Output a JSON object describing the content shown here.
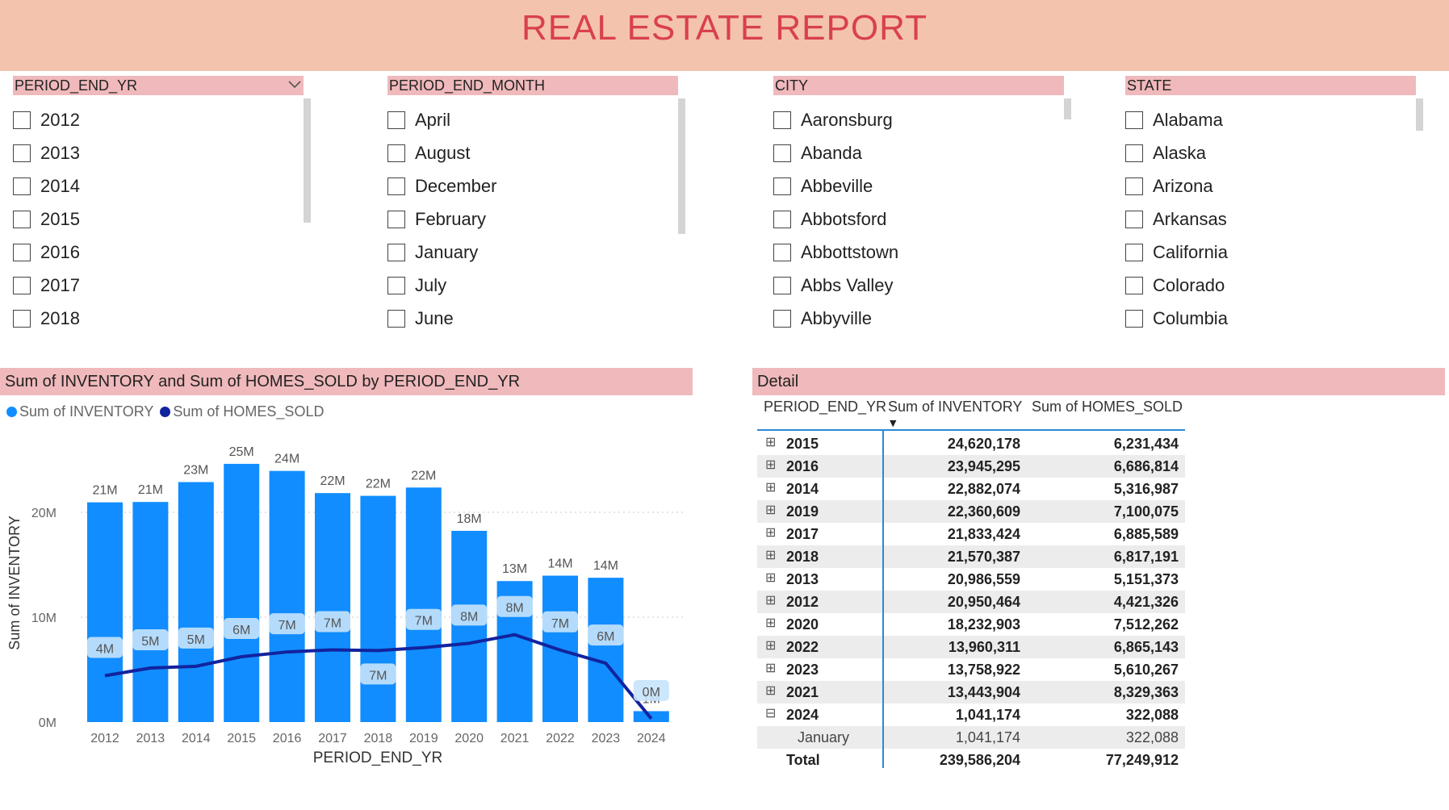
{
  "header": {
    "title": "REAL ESTATE REPORT"
  },
  "slicers": {
    "year": {
      "title": "PERIOD_END_YR",
      "items": [
        "2012",
        "2013",
        "2014",
        "2015",
        "2016",
        "2017",
        "2018"
      ]
    },
    "month": {
      "title": "PERIOD_END_MONTH",
      "items": [
        "April",
        "August",
        "December",
        "February",
        "January",
        "July",
        "June"
      ]
    },
    "city": {
      "title": "CITY",
      "items": [
        "Aaronsburg",
        "Abanda",
        "Abbeville",
        "Abbotsford",
        "Abbottstown",
        "Abbs Valley",
        "Abbyville"
      ]
    },
    "state": {
      "title": "STATE",
      "items": [
        "Alabama",
        "Alaska",
        "Arizona",
        "Arkansas",
        "California",
        "Colorado",
        "Columbia"
      ]
    }
  },
  "chart_panel": {
    "title": "Sum of INVENTORY and Sum of HOMES_SOLD by PERIOD_END_YR",
    "legend": [
      {
        "name": "Sum of INVENTORY",
        "color": "#118dff"
      },
      {
        "name": "Sum of HOMES_SOLD",
        "color": "#12239e"
      }
    ]
  },
  "chart_data": {
    "type": "bar",
    "categories": [
      "2012",
      "2013",
      "2014",
      "2015",
      "2016",
      "2017",
      "2018",
      "2019",
      "2020",
      "2021",
      "2022",
      "2023",
      "2024"
    ],
    "series": [
      {
        "name": "Sum of INVENTORY",
        "type": "bar",
        "color": "#118dff",
        "values": [
          20950464,
          20986559,
          22882074,
          24620178,
          23945295,
          21833424,
          21570387,
          22360609,
          18232903,
          13443904,
          13960311,
          13758922,
          1041174
        ],
        "labels": [
          "21M",
          "21M",
          "23M",
          "25M",
          "24M",
          "22M",
          "22M",
          "22M",
          "18M",
          "13M",
          "14M",
          "14M",
          "1M"
        ]
      },
      {
        "name": "Sum of HOMES_SOLD",
        "type": "line",
        "color": "#12239e",
        "values": [
          4421326,
          5151373,
          5316987,
          6231434,
          6686814,
          6885589,
          6817191,
          7100075,
          7512262,
          8329363,
          6865143,
          5610267,
          322088
        ],
        "labels": [
          "4M",
          "5M",
          "5M",
          "6M",
          "7M",
          "7M",
          "7M",
          "7M",
          "8M",
          "8M",
          "7M",
          "6M",
          "0M"
        ]
      }
    ],
    "xlabel": "PERIOD_END_YR",
    "ylabel": "Sum of INVENTORY",
    "ylim": [
      0,
      25000000
    ],
    "yticks": [
      0,
      10000000,
      20000000
    ],
    "ytick_labels": [
      "0M",
      "10M",
      "20M"
    ],
    "grid": true
  },
  "detail": {
    "title": "Detail",
    "columns": [
      "PERIOD_END_YR",
      "Sum of INVENTORY",
      "Sum of HOMES_SOLD"
    ],
    "rows": [
      {
        "year": "2015",
        "inventory": "24,620,178",
        "homes_sold": "6,231,434",
        "expand": "⊞"
      },
      {
        "year": "2016",
        "inventory": "23,945,295",
        "homes_sold": "6,686,814",
        "expand": "⊞"
      },
      {
        "year": "2014",
        "inventory": "22,882,074",
        "homes_sold": "5,316,987",
        "expand": "⊞"
      },
      {
        "year": "2019",
        "inventory": "22,360,609",
        "homes_sold": "7,100,075",
        "expand": "⊞"
      },
      {
        "year": "2017",
        "inventory": "21,833,424",
        "homes_sold": "6,885,589",
        "expand": "⊞"
      },
      {
        "year": "2018",
        "inventory": "21,570,387",
        "homes_sold": "6,817,191",
        "expand": "⊞"
      },
      {
        "year": "2013",
        "inventory": "20,986,559",
        "homes_sold": "5,151,373",
        "expand": "⊞"
      },
      {
        "year": "2012",
        "inventory": "20,950,464",
        "homes_sold": "4,421,326",
        "expand": "⊞"
      },
      {
        "year": "2020",
        "inventory": "18,232,903",
        "homes_sold": "7,512,262",
        "expand": "⊞"
      },
      {
        "year": "2022",
        "inventory": "13,960,311",
        "homes_sold": "6,865,143",
        "expand": "⊞"
      },
      {
        "year": "2023",
        "inventory": "13,758,922",
        "homes_sold": "5,610,267",
        "expand": "⊞"
      },
      {
        "year": "2021",
        "inventory": "13,443,904",
        "homes_sold": "8,329,363",
        "expand": "⊞"
      },
      {
        "year": "2024",
        "inventory": "1,041,174",
        "homes_sold": "322,088",
        "expand": "⊟"
      }
    ],
    "subrow": {
      "month": "January",
      "inventory": "1,041,174",
      "homes_sold": "322,088"
    },
    "total": {
      "label": "Total",
      "inventory": "239,586,204",
      "homes_sold": "77,249,912"
    }
  }
}
